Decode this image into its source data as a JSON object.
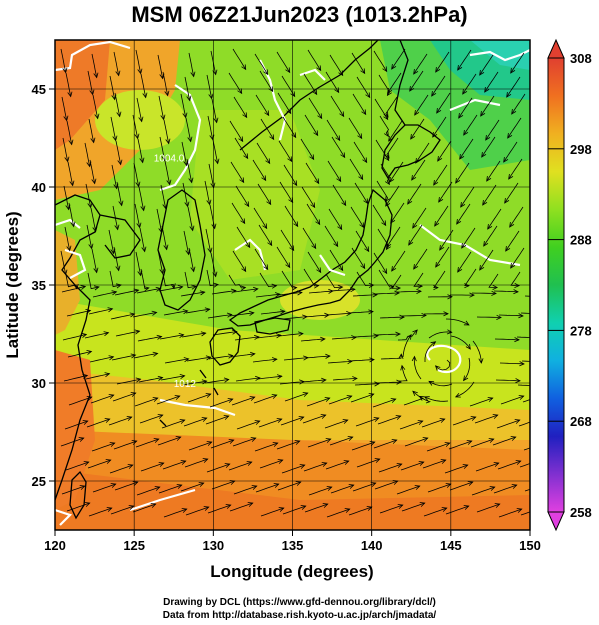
{
  "title": "MSM 06Z21Jun2023 (1013.2hPa)",
  "x_axis": {
    "label": "Longitude (degrees)",
    "range": [
      120,
      150
    ],
    "ticks": [
      120,
      125,
      130,
      135,
      140,
      145,
      150
    ],
    "tick_labels": [
      "120",
      "125",
      "130",
      "135",
      "140",
      "145",
      "150"
    ]
  },
  "y_axis": {
    "label": "Latitude  (degrees)",
    "range": [
      22.5,
      47.5
    ],
    "ticks": [
      25,
      30,
      35,
      40,
      45
    ],
    "tick_labels": [
      "25",
      "30",
      "35",
      "40",
      "45"
    ]
  },
  "colorbar": {
    "range": [
      258,
      308
    ],
    "ticks": [
      258,
      268,
      278,
      288,
      298,
      308
    ],
    "tick_labels": [
      "258",
      "268",
      "278",
      "288",
      "298",
      "308"
    ],
    "colors": [
      "#e040e0",
      "#8030d0",
      "#2020c0",
      "#1060e0",
      "#10b0e0",
      "#10d0b0",
      "#20c050",
      "#40d020",
      "#90e020",
      "#e0e020",
      "#f0b020",
      "#f07020",
      "#e04030"
    ]
  },
  "contour_labels": [
    {
      "text": "1004.0",
      "lon": 127.2,
      "lat": 41.3
    },
    {
      "text": "1012",
      "lon": 128.2,
      "lat": 29.8
    }
  ],
  "credits": {
    "line1": "Drawing by DCL (https://www.gfd-dennou.org/library/dcl/)",
    "line2": "Data from http://database.rish.kyoto-u.ac.jp/arch/jmadata/"
  }
}
